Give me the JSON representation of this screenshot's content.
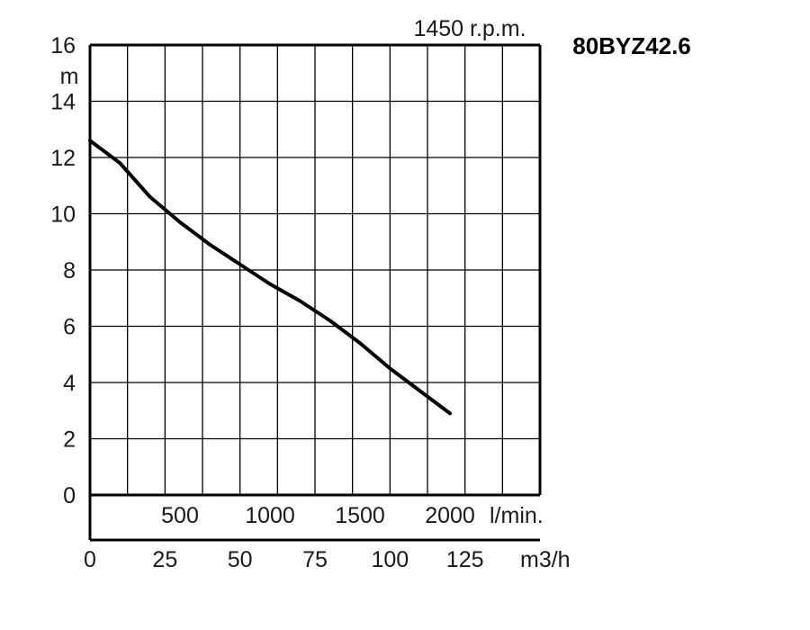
{
  "chart_data": {
    "type": "line",
    "title": "80BYZ42.6",
    "subtitle": "1450 r.p.m.",
    "ylabel": "m",
    "ylim": [
      0,
      16
    ],
    "y_ticks": [
      "0",
      "2",
      "4",
      "6",
      "8",
      "10",
      "12",
      "14",
      "16"
    ],
    "x_axis_lpm": {
      "unit": "l/min.",
      "ticks": [
        "500",
        "1000",
        "1500",
        "2000"
      ],
      "tick_values": [
        500,
        1000,
        1500,
        2000
      ]
    },
    "x_axis_m3h": {
      "unit": "m3/h",
      "ticks": [
        "0",
        "25",
        "50",
        "75",
        "100",
        "125"
      ],
      "tick_values": [
        0,
        25,
        50,
        75,
        100,
        125
      ],
      "xlim": [
        0,
        150
      ]
    },
    "grid": true,
    "series": [
      {
        "color": "#000000",
        "x": [
          0,
          10,
          20,
          30,
          40,
          50,
          60,
          70,
          80,
          90,
          100,
          110,
          120
        ],
        "y": [
          12.6,
          11.8,
          10.6,
          9.7,
          8.9,
          8.2,
          7.5,
          6.9,
          6.2,
          5.4,
          4.5,
          3.7,
          2.9
        ]
      }
    ]
  }
}
